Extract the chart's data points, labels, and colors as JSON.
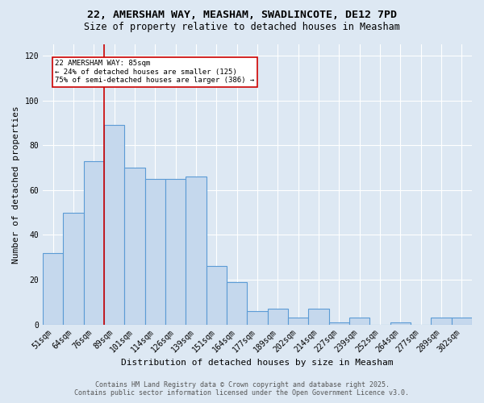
{
  "title_line1": "22, AMERSHAM WAY, MEASHAM, SWADLINCOTE, DE12 7PD",
  "title_line2": "Size of property relative to detached houses in Measham",
  "xlabel": "Distribution of detached houses by size in Measham",
  "ylabel": "Number of detached properties",
  "categories": [
    "51sqm",
    "64sqm",
    "76sqm",
    "89sqm",
    "101sqm",
    "114sqm",
    "126sqm",
    "139sqm",
    "151sqm",
    "164sqm",
    "177sqm",
    "189sqm",
    "202sqm",
    "214sqm",
    "227sqm",
    "239sqm",
    "252sqm",
    "264sqm",
    "277sqm",
    "289sqm",
    "302sqm"
  ],
  "values": [
    32,
    50,
    73,
    89,
    70,
    65,
    65,
    66,
    26,
    19,
    6,
    7,
    3,
    7,
    1,
    3,
    0,
    1,
    0,
    3,
    3
  ],
  "bar_color": "#c5d8ed",
  "bar_edge_color": "#5b9bd5",
  "bar_edge_width": 0.8,
  "red_line_x": 2.5,
  "annotation_text": "22 AMERSHAM WAY: 85sqm\n← 24% of detached houses are smaller (125)\n75% of semi-detached houses are larger (386) →",
  "annotation_box_color": "#ffffff",
  "annotation_box_edge_color": "#cc0000",
  "red_line_color": "#cc0000",
  "ylim": [
    0,
    125
  ],
  "yticks": [
    0,
    20,
    40,
    60,
    80,
    100,
    120
  ],
  "grid_color": "#ffffff",
  "bg_color": "#dde8f3",
  "footer_line1": "Contains HM Land Registry data © Crown copyright and database right 2025.",
  "footer_line2": "Contains public sector information licensed under the Open Government Licence v3.0.",
  "title_fontsize": 9.5,
  "subtitle_fontsize": 8.5,
  "axis_label_fontsize": 8,
  "tick_fontsize": 7,
  "annotation_fontsize": 6.5,
  "footer_fontsize": 6
}
